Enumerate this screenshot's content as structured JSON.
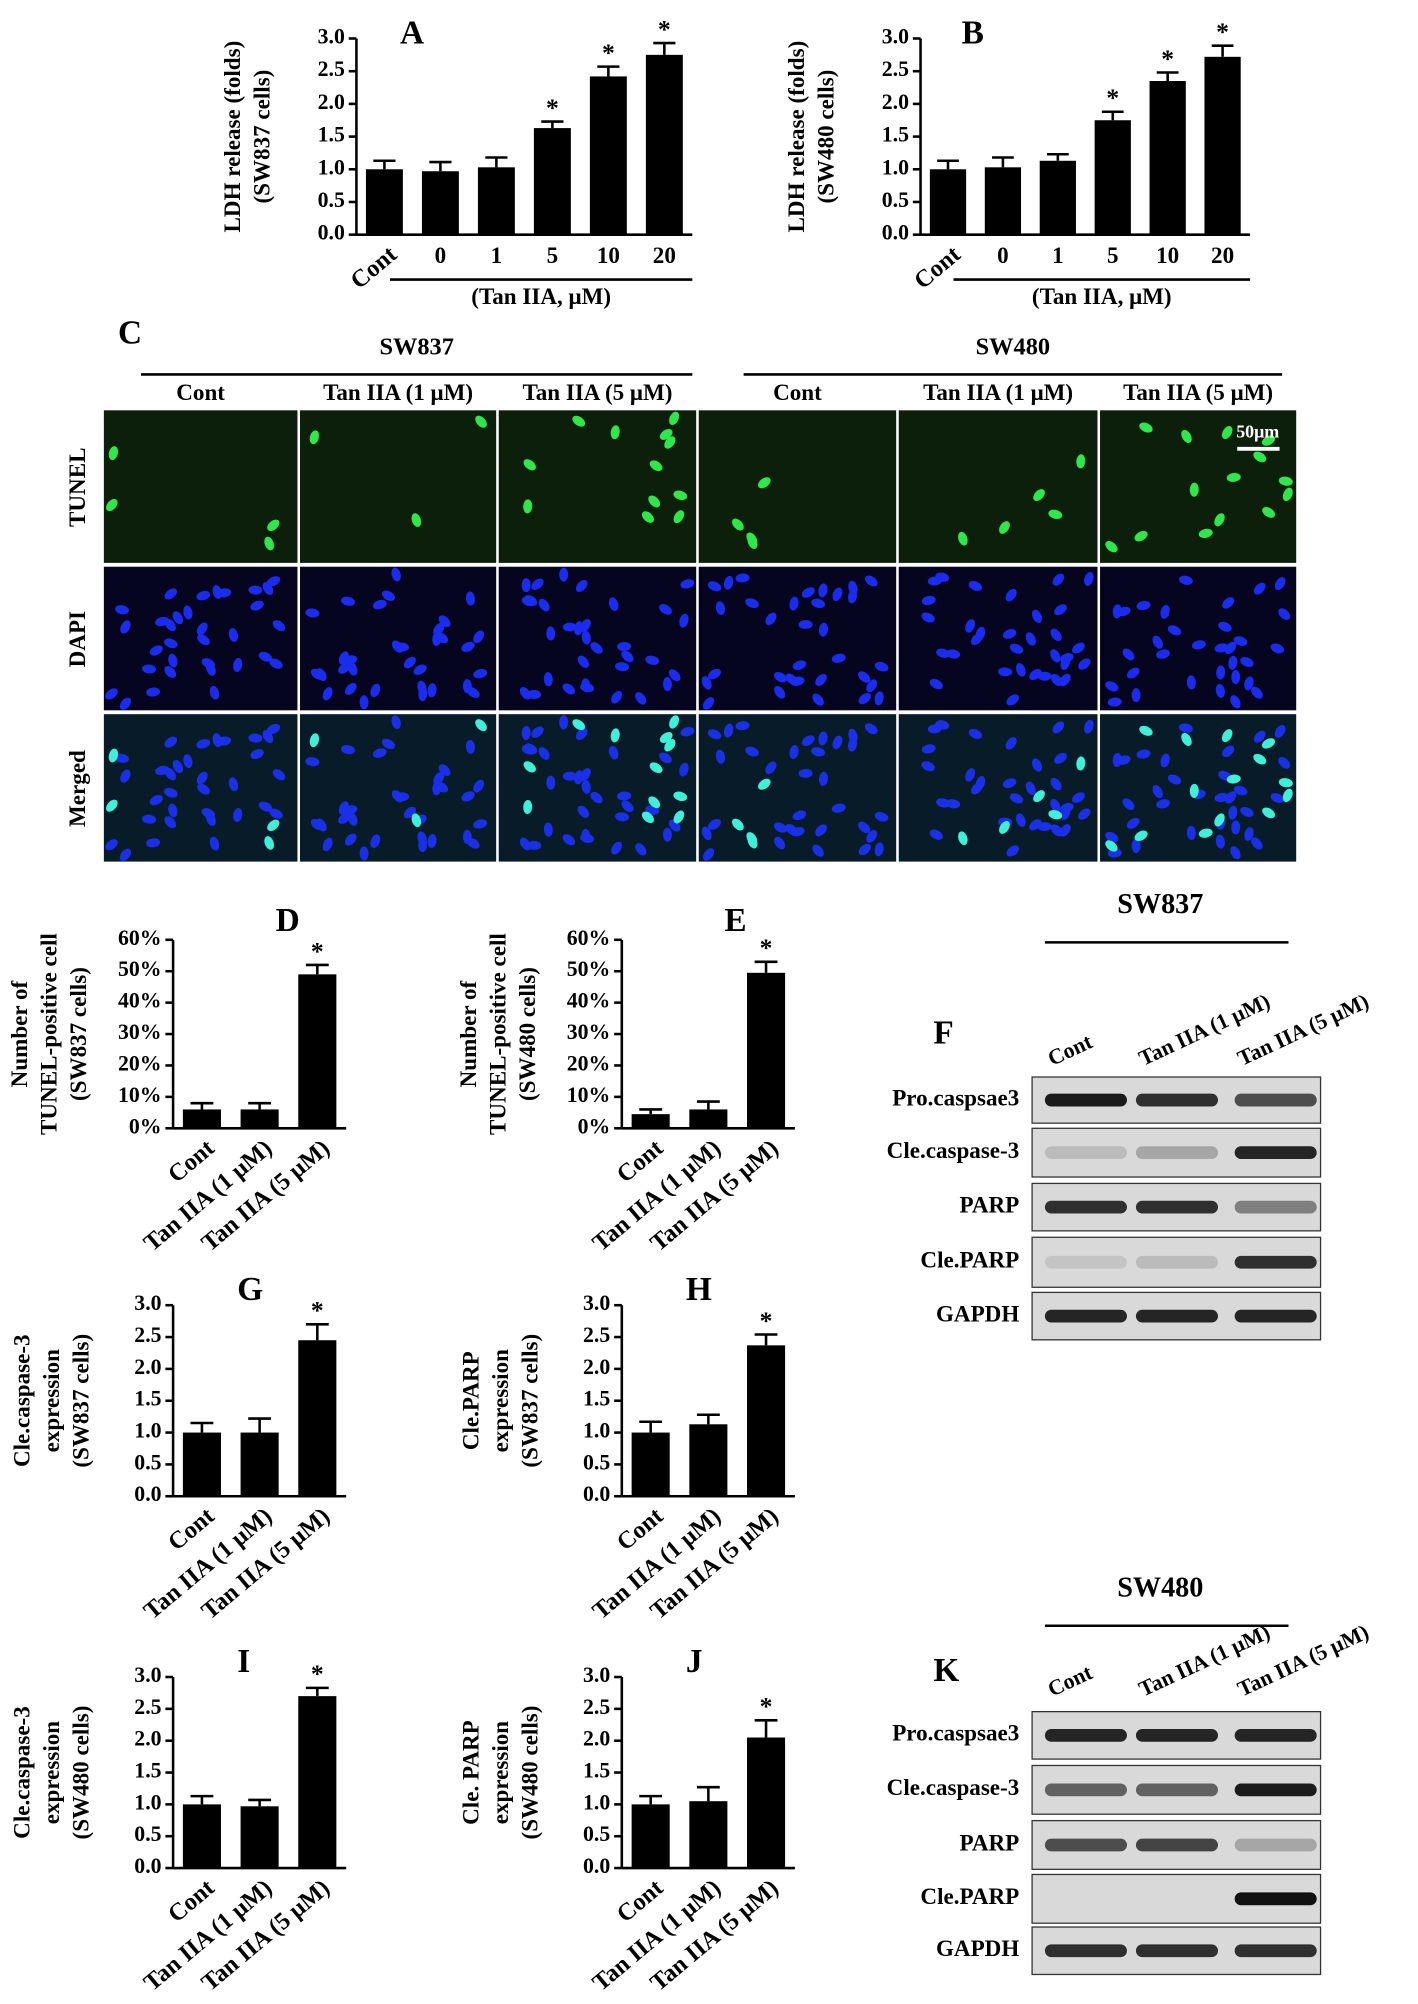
{
  "chart_data": [
    {
      "type": "bar",
      "label": "A",
      "y_label": [
        "LDH release (folds)",
        "(SW837 cells)"
      ],
      "categories": [
        "Cont",
        "0",
        "1",
        "5",
        "10",
        "20"
      ],
      "values": [
        1.0,
        0.97,
        1.03,
        1.63,
        2.42,
        2.75
      ],
      "errors": [
        0.13,
        0.14,
        0.15,
        0.1,
        0.15,
        0.18
      ],
      "significance": [
        null,
        null,
        null,
        "*",
        "*",
        "*"
      ],
      "x_group_label": "(Tan IIA, μM)",
      "ylim": [
        0,
        3
      ],
      "yticks": [
        {
          "value": 0,
          "label": "0.0"
        },
        0.5,
        {
          "value": 1,
          "label": "1.0"
        },
        1.5,
        {
          "value": 2,
          "label": "2.0"
        },
        2.5,
        {
          "value": 3,
          "label": "3.0"
        }
      ],
      "color": "#000000"
    },
    {
      "type": "bar",
      "label": "B",
      "y_label": [
        "LDH release (folds)",
        "(SW480 cells)"
      ],
      "categories": [
        "Cont",
        "0",
        "1",
        "5",
        "10",
        "20"
      ],
      "values": [
        1.0,
        1.03,
        1.13,
        1.75,
        2.35,
        2.72
      ],
      "errors": [
        0.13,
        0.15,
        0.1,
        0.13,
        0.13,
        0.17
      ],
      "significance": [
        null,
        null,
        null,
        "*",
        "*",
        "*"
      ],
      "x_group_label": "(Tan IIA, μM)",
      "ylim": [
        0,
        3
      ],
      "yticks": [
        {
          "value": 0,
          "label": "0.0"
        },
        0.5,
        {
          "value": 1,
          "label": "1.0"
        },
        1.5,
        {
          "value": 2,
          "label": "2.0"
        },
        2.5,
        {
          "value": 3,
          "label": "3.0"
        }
      ],
      "color": "#000000"
    },
    {
      "type": "bar",
      "label": "D",
      "y_label": [
        "Number of",
        "TUNEL-positive cell",
        "(SW837 cells)"
      ],
      "categories": [
        "Cont",
        "Tan IIA (1 μM)",
        "Tan IIA (5 μM)"
      ],
      "values": [
        6,
        6,
        49
      ],
      "errors": [
        2,
        2,
        3
      ],
      "significance": [
        null,
        null,
        "*"
      ],
      "ylim": [
        0,
        60
      ],
      "yticks": [
        {
          "value": 0,
          "label": "0%"
        },
        {
          "value": 10,
          "label": "10%"
        },
        {
          "value": 20,
          "label": "20%"
        },
        {
          "value": 30,
          "label": "30%"
        },
        {
          "value": 40,
          "label": "40%"
        },
        {
          "value": 50,
          "label": "50%"
        },
        {
          "value": 60,
          "label": "60%"
        }
      ],
      "color": "#000000"
    },
    {
      "type": "bar",
      "label": "E",
      "y_label": [
        "Number of",
        "TUNEL-positive cell",
        "(SW480 cells)"
      ],
      "categories": [
        "Cont",
        "Tan IIA (1 μM)",
        "Tan IIA (5 μM)"
      ],
      "values": [
        4.5,
        6,
        49.5
      ],
      "errors": [
        1.5,
        2.5,
        3.5
      ],
      "significance": [
        null,
        null,
        "*"
      ],
      "ylim": [
        0,
        60
      ],
      "yticks": [
        {
          "value": 0,
          "label": "0%"
        },
        {
          "value": 10,
          "label": "10%"
        },
        {
          "value": 20,
          "label": "20%"
        },
        {
          "value": 30,
          "label": "30%"
        },
        {
          "value": 40,
          "label": "40%"
        },
        {
          "value": 50,
          "label": "50%"
        },
        {
          "value": 60,
          "label": "60%"
        }
      ],
      "color": "#000000"
    },
    {
      "type": "bar",
      "label": "G",
      "y_label": [
        "Cle.caspase-3",
        "expression",
        "(SW837 cells)"
      ],
      "categories": [
        "Cont",
        "Tan IIA (1 μM)",
        "Tan IIA (5 μM)"
      ],
      "values": [
        1.0,
        1.0,
        2.45
      ],
      "errors": [
        0.15,
        0.22,
        0.25
      ],
      "significance": [
        null,
        null,
        "*"
      ],
      "ylim": [
        0,
        3
      ],
      "yticks": [
        {
          "value": 0,
          "label": "0.0"
        },
        0.5,
        {
          "value": 1,
          "label": "1.0"
        },
        1.5,
        {
          "value": 2,
          "label": "2.0"
        },
        2.5,
        {
          "value": 3,
          "label": "3.0"
        }
      ],
      "color": "#000000"
    },
    {
      "type": "bar",
      "label": "H",
      "y_label": [
        "Cle.PARP",
        "expression",
        "(SW837 cells)"
      ],
      "categories": [
        "Cont",
        "Tan IIA (1 μM)",
        "Tan IIA (5 μM)"
      ],
      "values": [
        1.0,
        1.13,
        2.37
      ],
      "errors": [
        0.17,
        0.15,
        0.17
      ],
      "significance": [
        null,
        null,
        "*"
      ],
      "ylim": [
        0,
        3
      ],
      "yticks": [
        {
          "value": 0,
          "label": "0.0"
        },
        0.5,
        {
          "value": 1,
          "label": "1.0"
        },
        1.5,
        {
          "value": 2,
          "label": "2.0"
        },
        2.5,
        {
          "value": 3,
          "label": "3.0"
        }
      ],
      "color": "#000000"
    },
    {
      "type": "bar",
      "label": "I",
      "y_label": [
        "Cle.caspase-3",
        "expression",
        "(SW480 cells)"
      ],
      "categories": [
        "Cont",
        "Tan IIA (1 μM)",
        "Tan IIA (5 μM)"
      ],
      "values": [
        1.0,
        0.97,
        2.7
      ],
      "errors": [
        0.13,
        0.1,
        0.13
      ],
      "significance": [
        null,
        null,
        "*"
      ],
      "ylim": [
        0,
        3
      ],
      "yticks": [
        {
          "value": 0,
          "label": "0.0"
        },
        0.5,
        {
          "value": 1,
          "label": "1.0"
        },
        1.5,
        {
          "value": 2,
          "label": "2.0"
        },
        2.5,
        {
          "value": 3,
          "label": "3.0"
        }
      ],
      "color": "#000000"
    },
    {
      "type": "bar",
      "label": "J",
      "y_label": [
        "Cle. PARP",
        "expression",
        "(SW480 cells)"
      ],
      "categories": [
        "Cont",
        "Tan IIA (1 μM)",
        "Tan IIA (5 μM)"
      ],
      "values": [
        1.0,
        1.05,
        2.05
      ],
      "errors": [
        0.13,
        0.22,
        0.27
      ],
      "significance": [
        null,
        null,
        "*"
      ],
      "ylim": [
        0,
        3
      ],
      "yticks": [
        {
          "value": 0,
          "label": "0.0"
        },
        0.5,
        {
          "value": 1,
          "label": "1.0"
        },
        1.5,
        {
          "value": 2,
          "label": "2.0"
        },
        2.5,
        {
          "value": 3,
          "label": "3.0"
        }
      ],
      "color": "#000000"
    }
  ],
  "tunel_panel": {
    "label": "C",
    "groups": [
      {
        "name": "SW837",
        "columns": [
          "Cont",
          "Tan IIA (1 μM)",
          "Tan IIA (5 μM)"
        ]
      },
      {
        "name": "SW480",
        "columns": [
          "Cont",
          "Tan IIA (1 μM)",
          "Tan IIA (5 μM)"
        ]
      }
    ],
    "rows": [
      "TUNEL",
      "DAPI",
      "Merged"
    ],
    "scale_bar": "50μm"
  },
  "western_blots": [
    {
      "label": "F",
      "cell_line": "SW837",
      "lanes": [
        "Cont",
        "Tan IIA (1 μM)",
        "Tan IIA (5 μM)"
      ],
      "proteins": [
        "Pro.caspsae3",
        "Cle.caspase-3",
        "PARP",
        "Cle.PARP",
        "GAPDH"
      ]
    },
    {
      "label": "K",
      "cell_line": "SW480",
      "lanes": [
        "Cont",
        "Tan IIA (1 μM)",
        "Tan IIA (5 μM)"
      ],
      "proteins": [
        "Pro.caspsae3",
        "Cle.caspase-3",
        "PARP",
        "Cle.PARP",
        "GAPDH"
      ]
    }
  ]
}
